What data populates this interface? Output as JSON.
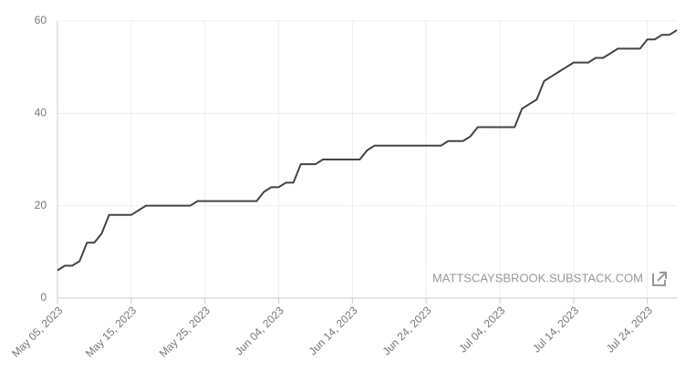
{
  "chart_data": {
    "type": "line",
    "x": [
      "2023-05-05",
      "2023-05-06",
      "2023-05-07",
      "2023-05-08",
      "2023-05-09",
      "2023-05-10",
      "2023-05-11",
      "2023-05-12",
      "2023-05-13",
      "2023-05-14",
      "2023-05-15",
      "2023-05-16",
      "2023-05-17",
      "2023-05-18",
      "2023-05-19",
      "2023-05-20",
      "2023-05-21",
      "2023-05-22",
      "2023-05-23",
      "2023-05-24",
      "2023-05-25",
      "2023-05-26",
      "2023-05-27",
      "2023-05-28",
      "2023-05-29",
      "2023-05-30",
      "2023-05-31",
      "2023-06-01",
      "2023-06-02",
      "2023-06-03",
      "2023-06-04",
      "2023-06-05",
      "2023-06-06",
      "2023-06-07",
      "2023-06-08",
      "2023-06-09",
      "2023-06-10",
      "2023-06-11",
      "2023-06-12",
      "2023-06-13",
      "2023-06-14",
      "2023-06-15",
      "2023-06-16",
      "2023-06-17",
      "2023-06-18",
      "2023-06-19",
      "2023-06-20",
      "2023-06-21",
      "2023-06-22",
      "2023-06-23",
      "2023-06-24",
      "2023-06-25",
      "2023-06-26",
      "2023-06-27",
      "2023-06-28",
      "2023-06-29",
      "2023-06-30",
      "2023-07-01",
      "2023-07-02",
      "2023-07-03",
      "2023-07-04",
      "2023-07-05",
      "2023-07-06",
      "2023-07-07",
      "2023-07-08",
      "2023-07-09",
      "2023-07-10",
      "2023-07-11",
      "2023-07-12",
      "2023-07-13",
      "2023-07-14",
      "2023-07-15",
      "2023-07-16",
      "2023-07-17",
      "2023-07-18",
      "2023-07-19",
      "2023-07-20",
      "2023-07-21",
      "2023-07-22",
      "2023-07-23",
      "2023-07-24",
      "2023-07-25",
      "2023-07-26",
      "2023-07-27",
      "2023-07-28"
    ],
    "series": [
      {
        "color": "#444444",
        "values": [
          6,
          7,
          7,
          8,
          12,
          12,
          14,
          18,
          18,
          18,
          18,
          19,
          20,
          20,
          20,
          20,
          20,
          20,
          20,
          21,
          21,
          21,
          21,
          21,
          21,
          21,
          21,
          21,
          23,
          24,
          24,
          25,
          25,
          29,
          29,
          29,
          30,
          30,
          30,
          30,
          30,
          30,
          32,
          33,
          33,
          33,
          33,
          33,
          33,
          33,
          33,
          33,
          33,
          34,
          34,
          34,
          35,
          37,
          37,
          37,
          37,
          37,
          37,
          41,
          42,
          43,
          47,
          48,
          49,
          50,
          51,
          51,
          51,
          52,
          52,
          53,
          54,
          54,
          54,
          54,
          56,
          56,
          57,
          57,
          58
        ]
      }
    ],
    "xlim": [
      "2023-05-05",
      "2023-07-28"
    ],
    "xticks": [
      {
        "value": "2023-05-05",
        "label": "May 05, 2023"
      },
      {
        "value": "2023-05-15",
        "label": "May 15, 2023"
      },
      {
        "value": "2023-05-25",
        "label": "May 25, 2023"
      },
      {
        "value": "2023-06-04",
        "label": "Jun 04, 2023"
      },
      {
        "value": "2023-06-14",
        "label": "Jun 14, 2023"
      },
      {
        "value": "2023-06-24",
        "label": "Jun 24, 2023"
      },
      {
        "value": "2023-07-04",
        "label": "Jul 04, 2023"
      },
      {
        "value": "2023-07-14",
        "label": "Jul 14, 2023"
      },
      {
        "value": "2023-07-24",
        "label": "Jul 24, 2023"
      }
    ],
    "ylim": [
      0,
      60
    ],
    "yticks": [
      0,
      20,
      40,
      60
    ],
    "grid": true,
    "annotation": "MATTSCAYSBROOK.SUBSTACK.COM"
  }
}
